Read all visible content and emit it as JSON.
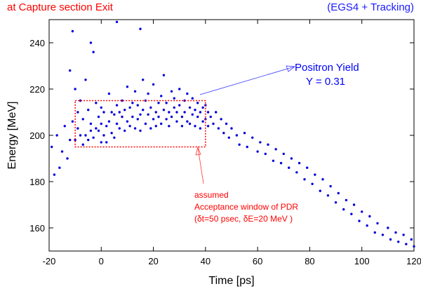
{
  "header": {
    "left_note": "at Capture section Exit",
    "right_note": "(EGS4 + Tracking)"
  },
  "colors": {
    "points": "#0000dd",
    "window": "#ff0000",
    "yield_text": "#0000ff",
    "window_text": "#ff0000",
    "axes": "#000000"
  },
  "chart_data": {
    "type": "scatter",
    "title": "",
    "xlabel": "Time [ps]",
    "ylabel": "Energy [MeV]",
    "xlim": [
      -20,
      120
    ],
    "ylim": [
      150,
      250
    ],
    "xticks": [
      -20,
      0,
      20,
      40,
      60,
      80,
      100,
      120
    ],
    "yticks": [
      160,
      180,
      200,
      220,
      240
    ],
    "grid": false,
    "legend": "none",
    "series": [
      {
        "points": [
          [
            -19,
            195
          ],
          [
            -18,
            183
          ],
          [
            -17,
            200
          ],
          [
            -16,
            186
          ],
          [
            -15,
            193
          ],
          [
            -14,
            204
          ],
          [
            -13,
            190
          ],
          [
            -12,
            228
          ],
          [
            -12,
            198
          ],
          [
            -11,
            245
          ],
          [
            -11,
            206
          ],
          [
            -10,
            220
          ],
          [
            -10,
            198
          ],
          [
            -9,
            210
          ],
          [
            -9,
            203
          ],
          [
            -8,
            215
          ],
          [
            -8,
            200
          ],
          [
            -7,
            196
          ],
          [
            -7,
            207
          ],
          [
            -6,
            224
          ],
          [
            -6,
            200
          ],
          [
            -5,
            211
          ],
          [
            -5,
            198
          ],
          [
            -4,
            202
          ],
          [
            -4,
            240
          ],
          [
            -4,
            205
          ],
          [
            -3,
            236
          ],
          [
            -3,
            199
          ],
          [
            -2,
            214
          ],
          [
            -2,
            203
          ],
          [
            -1,
            202
          ],
          [
            -1,
            208
          ],
          [
            0,
            197
          ],
          [
            0,
            205
          ],
          [
            0,
            212
          ],
          [
            1,
            200
          ],
          [
            1,
            210
          ],
          [
            2,
            204
          ],
          [
            2,
            197
          ],
          [
            3,
            218
          ],
          [
            3,
            206
          ],
          [
            4,
            201
          ],
          [
            4,
            210
          ],
          [
            5,
            209
          ],
          [
            5,
            199
          ],
          [
            6,
            249
          ],
          [
            6,
            205
          ],
          [
            6,
            213
          ],
          [
            7,
            203
          ],
          [
            7,
            210
          ],
          [
            8,
            208
          ],
          [
            8,
            215
          ],
          [
            9,
            202
          ],
          [
            9,
            211
          ],
          [
            10,
            206
          ],
          [
            10,
            221
          ],
          [
            11,
            204
          ],
          [
            11,
            212
          ],
          [
            12,
            208
          ],
          [
            12,
            214
          ],
          [
            13,
            203
          ],
          [
            13,
            219
          ],
          [
            14,
            207
          ],
          [
            14,
            213
          ],
          [
            15,
            246
          ],
          [
            15,
            209
          ],
          [
            15,
            202
          ],
          [
            16,
            211
          ],
          [
            16,
            224
          ],
          [
            17,
            205
          ],
          [
            17,
            215
          ],
          [
            18,
            209
          ],
          [
            18,
            218
          ],
          [
            19,
            203
          ],
          [
            19,
            212
          ],
          [
            20,
            207
          ],
          [
            20,
            222
          ],
          [
            21,
            210
          ],
          [
            21,
            204
          ],
          [
            22,
            214
          ],
          [
            22,
            208
          ],
          [
            23,
            217
          ],
          [
            23,
            205
          ],
          [
            24,
            211
          ],
          [
            24,
            226
          ],
          [
            25,
            207
          ],
          [
            25,
            214
          ],
          [
            26,
            210
          ],
          [
            26,
            204
          ],
          [
            27,
            219
          ],
          [
            27,
            208
          ],
          [
            28,
            212
          ],
          [
            28,
            216
          ],
          [
            29,
            206
          ],
          [
            29,
            210
          ],
          [
            30,
            213
          ],
          [
            30,
            220
          ],
          [
            31,
            208
          ],
          [
            31,
            204
          ],
          [
            32,
            215
          ],
          [
            32,
            210
          ],
          [
            33,
            206
          ],
          [
            33,
            218
          ],
          [
            34,
            212
          ],
          [
            34,
            205
          ],
          [
            35,
            209
          ],
          [
            35,
            216
          ],
          [
            36,
            211
          ],
          [
            36,
            204
          ],
          [
            37,
            214
          ],
          [
            37,
            208
          ],
          [
            38,
            210
          ],
          [
            38,
            203
          ],
          [
            39,
            212
          ],
          [
            39,
            206
          ],
          [
            40,
            207
          ],
          [
            40,
            213
          ],
          [
            41,
            204
          ],
          [
            41,
            210
          ],
          [
            42,
            208
          ],
          [
            43,
            205
          ],
          [
            44,
            210
          ],
          [
            45,
            203
          ],
          [
            46,
            207
          ],
          [
            47,
            201
          ],
          [
            48,
            205
          ],
          [
            49,
            199
          ],
          [
            50,
            203
          ],
          [
            52,
            200
          ],
          [
            53,
            196
          ],
          [
            55,
            201
          ],
          [
            56,
            195
          ],
          [
            58,
            199
          ],
          [
            60,
            193
          ],
          [
            61,
            197
          ],
          [
            63,
            192
          ],
          [
            64,
            196
          ],
          [
            66,
            189
          ],
          [
            67,
            194
          ],
          [
            69,
            188
          ],
          [
            70,
            192
          ],
          [
            72,
            186
          ],
          [
            73,
            190
          ],
          [
            75,
            184
          ],
          [
            76,
            188
          ],
          [
            78,
            181
          ],
          [
            79,
            186
          ],
          [
            81,
            179
          ],
          [
            82,
            183
          ],
          [
            84,
            176
          ],
          [
            85,
            181
          ],
          [
            87,
            174
          ],
          [
            88,
            178
          ],
          [
            90,
            171
          ],
          [
            91,
            175
          ],
          [
            93,
            168
          ],
          [
            94,
            172
          ],
          [
            96,
            166
          ],
          [
            97,
            170
          ],
          [
            99,
            163
          ],
          [
            100,
            167
          ],
          [
            102,
            161
          ],
          [
            103,
            165
          ],
          [
            105,
            158
          ],
          [
            106,
            162
          ],
          [
            108,
            157
          ],
          [
            110,
            160
          ],
          [
            111,
            155
          ],
          [
            113,
            158
          ],
          [
            114,
            154
          ],
          [
            116,
            157
          ],
          [
            117,
            153
          ],
          [
            119,
            155
          ],
          [
            120,
            152
          ]
        ]
      }
    ],
    "acceptance_window": {
      "x": [
        -10,
        40
      ],
      "y": [
        195,
        215
      ]
    },
    "annotations": {
      "yield_title": "Positron Yield",
      "yield_value": "Y = 0.31",
      "window_line1": "assumed",
      "window_line2": "Acceptance window of PDR",
      "window_line3": "(δt=50 psec, δE=20 MeV )"
    }
  }
}
